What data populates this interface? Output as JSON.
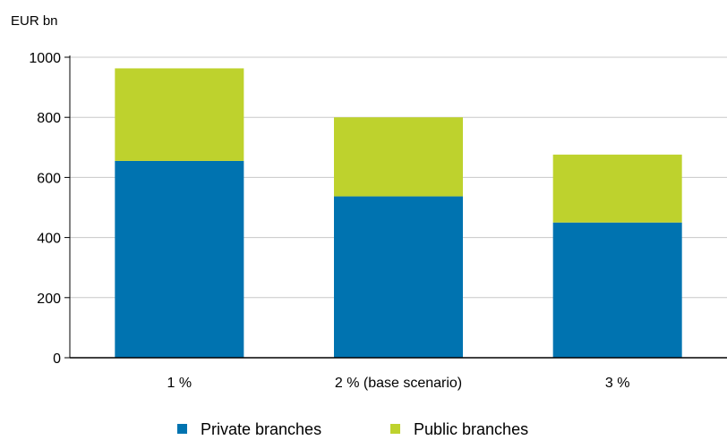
{
  "chart_data": {
    "type": "bar",
    "stacked": true,
    "ylabel": "EUR bn",
    "ylim": [
      0,
      1000
    ],
    "yticks": [
      0,
      200,
      400,
      600,
      800,
      1000
    ],
    "categories": [
      "1 %",
      "2 % (base scenario)",
      "3 %"
    ],
    "series": [
      {
        "name": "Private branches",
        "color": "#0073b0",
        "values": [
          655,
          537,
          450
        ]
      },
      {
        "name": "Public branches",
        "color": "#bed22d",
        "values": [
          308,
          263,
          226
        ]
      }
    ],
    "grid": true,
    "legend": "bottom-center"
  }
}
